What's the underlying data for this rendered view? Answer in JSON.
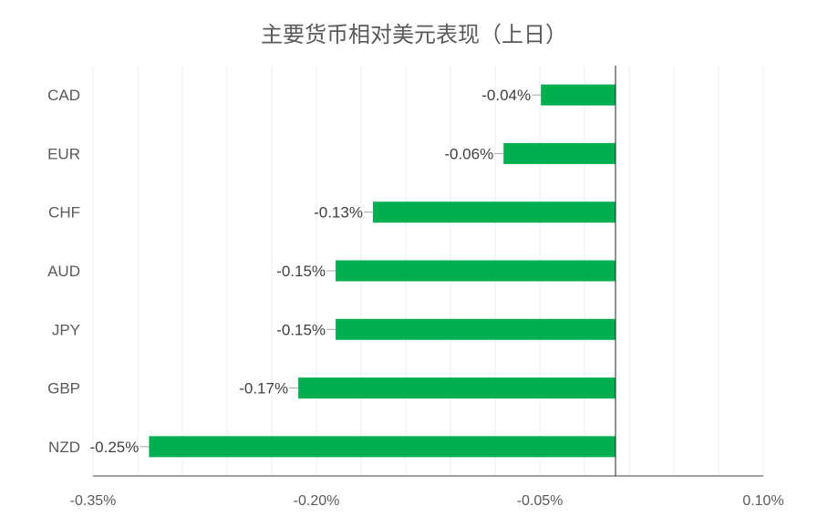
{
  "chart_data": {
    "type": "bar",
    "orientation": "horizontal",
    "title": "主要货币相对美元表现（上日）",
    "categories": [
      "CAD",
      "EUR",
      "CHF",
      "AUD",
      "JPY",
      "GBP",
      "NZD"
    ],
    "values": [
      -0.04,
      -0.06,
      -0.13,
      -0.15,
      -0.15,
      -0.17,
      -0.25
    ],
    "value_labels": [
      "-0.04%",
      "-0.06%",
      "-0.13%",
      "-0.15%",
      "-0.15%",
      "-0.17%",
      "-0.25%"
    ],
    "xlim": [
      -0.35,
      0.1
    ],
    "x_ticks": [
      -0.35,
      -0.2,
      -0.05,
      0.1
    ],
    "x_tick_labels": [
      "-0.35%",
      "-0.20%",
      "-0.05%",
      "0.10%"
    ],
    "bar_color": "#00b050",
    "grid": true,
    "legend": "none"
  }
}
